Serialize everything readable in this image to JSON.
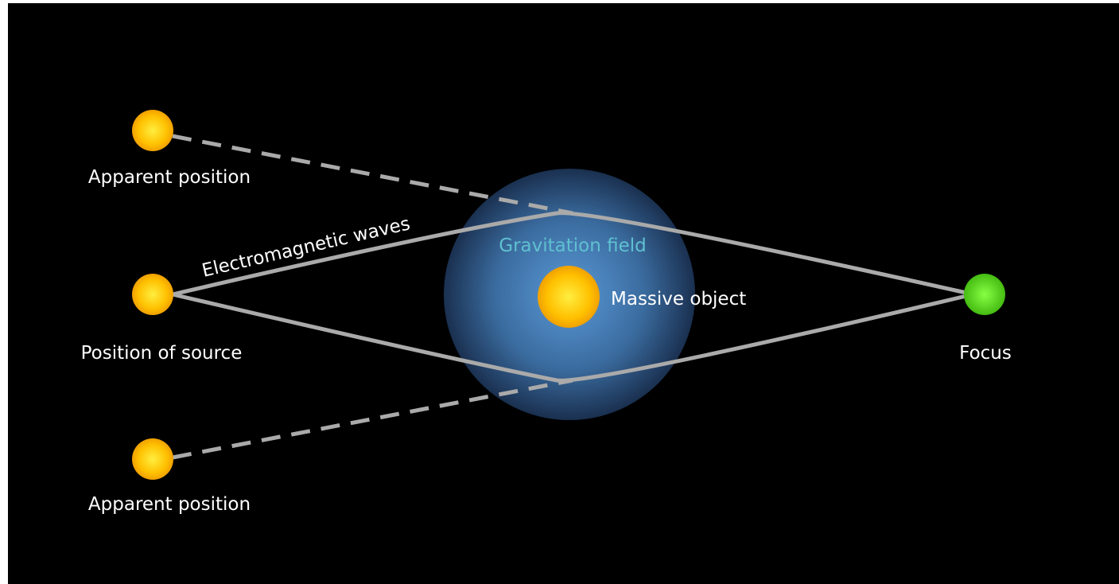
{
  "labels": {
    "apparent_top": "Apparent position",
    "source": "Position of source",
    "apparent_bottom": "Apparent position",
    "waves": "Electromagnetic waves",
    "field": "Gravitation field",
    "massive": "Massive object",
    "focus": "Focus"
  }
}
